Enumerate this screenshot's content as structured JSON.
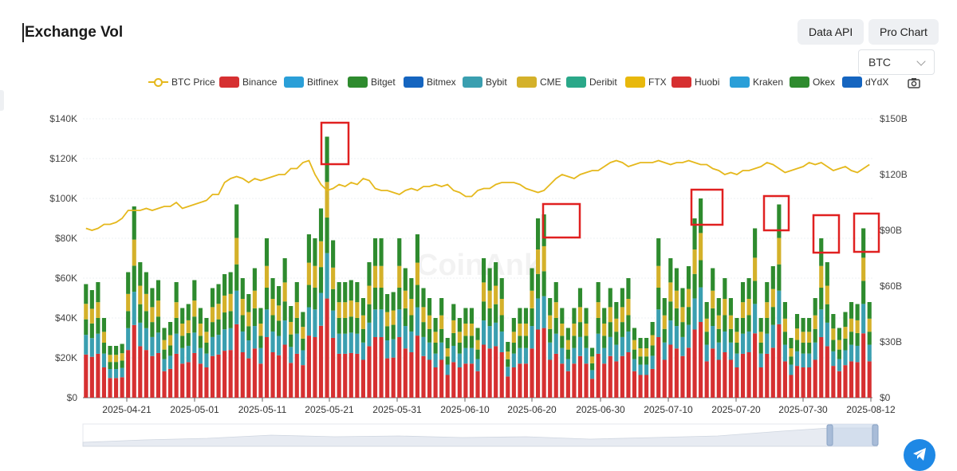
{
  "page": {
    "title": "Exchange Vol",
    "data_api_label": "Data API",
    "pro_chart_label": "Pro Chart",
    "coin_select": "BTC"
  },
  "colors": {
    "btc_price": "#e5b81c",
    "binance": "#d63031",
    "bitfinex": "#2a9fd8",
    "bitget": "#2e8b2e",
    "bitmex": "#1565c0",
    "bybit": "#3a9fb0",
    "cme": "#d4b12a",
    "deribit": "#2aa889",
    "ftx": "#e8b80c",
    "huobi": "#d63031",
    "kraken": "#2a9fd8",
    "okex": "#2e8b2e",
    "dydx": "#1565c0",
    "highlight": "#e02020"
  },
  "legend": [
    {
      "label": "BTC Price",
      "color": "#e5b81c",
      "kind": "line"
    },
    {
      "label": "Binance",
      "color": "#d63031"
    },
    {
      "label": "Bitfinex",
      "color": "#2a9fd8"
    },
    {
      "label": "Bitget",
      "color": "#2e8b2e"
    },
    {
      "label": "Bitmex",
      "color": "#1565c0"
    },
    {
      "label": "Bybit",
      "color": "#3a9fb0"
    },
    {
      "label": "CME",
      "color": "#d4b12a"
    },
    {
      "label": "Deribit",
      "color": "#2aa889"
    },
    {
      "label": "FTX",
      "color": "#e8b80c"
    },
    {
      "label": "Huobi",
      "color": "#d63031"
    },
    {
      "label": "Kraken",
      "color": "#2a9fd8"
    },
    {
      "label": "Okex",
      "color": "#2e8b2e"
    },
    {
      "label": "dYdX",
      "color": "#1565c0"
    }
  ],
  "chart_data": {
    "type": "bar",
    "stacked": true,
    "watermark": "CoinAnk",
    "x_tick_labels": [
      "2025-04-21",
      "2025-05-01",
      "2025-05-11",
      "2025-05-21",
      "2025-05-31",
      "2025-06-10",
      "2025-06-20",
      "2025-06-30",
      "2025-07-10",
      "2025-07-20",
      "2025-07-30",
      "2025-08-12"
    ],
    "left_axis": {
      "ticks": [
        "$0",
        "$20K",
        "$40K",
        "$60K",
        "$80K",
        "$100K",
        "$120K",
        "$140K"
      ],
      "range": [
        0,
        140000
      ]
    },
    "right_axis": {
      "ticks": [
        "$0",
        "$30B",
        "$60B",
        "$90B",
        "$120B",
        "$150B"
      ],
      "range": [
        0,
        150
      ]
    },
    "series_order": [
      "Binance",
      "Bybit",
      "Bitget",
      "CME",
      "Okex"
    ],
    "bars_left_axis_units": [
      57,
      54,
      58,
      40,
      26,
      26,
      27,
      63,
      96,
      68,
      63,
      55,
      59,
      35,
      38,
      58,
      45,
      47,
      59,
      45,
      40,
      55,
      57,
      62,
      63,
      97,
      60,
      52,
      65,
      45,
      80,
      60,
      56,
      70,
      46,
      58,
      43,
      82,
      80,
      95,
      131,
      79,
      58,
      58,
      59,
      58,
      50,
      68,
      80,
      80,
      52,
      53,
      80,
      65,
      60,
      82,
      55,
      50,
      40,
      50,
      30,
      47,
      40,
      45,
      45,
      35,
      70,
      65,
      68,
      60,
      28,
      40,
      45,
      45,
      65,
      90,
      92,
      50,
      58,
      45,
      35,
      45,
      55,
      45,
      25,
      58,
      45,
      55,
      48,
      55,
      60,
      35,
      30,
      30,
      38,
      80,
      50,
      70,
      65,
      55,
      66,
      90,
      100,
      48,
      65,
      50,
      60,
      50,
      40,
      58,
      60,
      85,
      40,
      58,
      66,
      97,
      48,
      30,
      42,
      40,
      40,
      50,
      80,
      68,
      42,
      35,
      43,
      48,
      47,
      85,
      48
    ],
    "binance_share": 0.38,
    "btc_price_line_left_axis_units": [
      85,
      84,
      85,
      87,
      87,
      88,
      90,
      94,
      94,
      94,
      95,
      94,
      95,
      96,
      96,
      98,
      95,
      96,
      97,
      98,
      99,
      102,
      102,
      108,
      110,
      111,
      110,
      108,
      110,
      109,
      110,
      111,
      112,
      112,
      115,
      115,
      118,
      119,
      112,
      107,
      104,
      105,
      107,
      106,
      108,
      107,
      110,
      109,
      105,
      104,
      104,
      103,
      102,
      104,
      105,
      104,
      106,
      106,
      107,
      106,
      107,
      104,
      103,
      101,
      101,
      104,
      105,
      105,
      107,
      108,
      108,
      108,
      107,
      105,
      104,
      103,
      104,
      107,
      110,
      112,
      111,
      110,
      112,
      113,
      114,
      114,
      116,
      118,
      119,
      118,
      116,
      117,
      118,
      118,
      118,
      119,
      118,
      117,
      118,
      118,
      119,
      118,
      117,
      117,
      115,
      114,
      112,
      113,
      112,
      114,
      114,
      115,
      116,
      118,
      117,
      115,
      113,
      114,
      115,
      116,
      118,
      117,
      118,
      116,
      114,
      115,
      116,
      114,
      113,
      115,
      117
    ],
    "highlight_boxes": [
      {
        "near_date": "2025-05-21"
      },
      {
        "near_date": "2025-06-20"
      },
      {
        "near_date": "2025-07-10"
      },
      {
        "near_date": "2025-07-20"
      },
      {
        "near_date": "2025-07-30"
      },
      {
        "near_date": "2025-08-12"
      }
    ]
  }
}
